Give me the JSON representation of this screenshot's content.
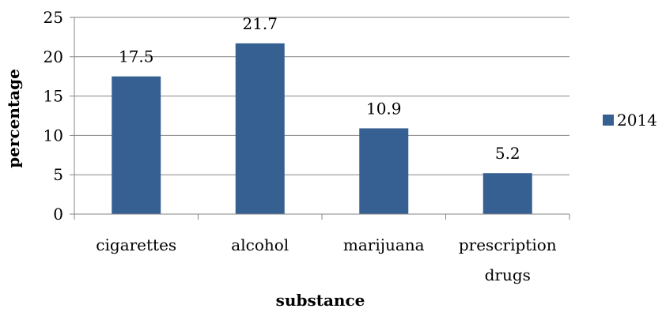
{
  "chart_data": {
    "type": "bar",
    "title": "",
    "xlabel": "substance",
    "ylabel": "percentage",
    "categories": [
      "cigarettes",
      "alcohol",
      "marijuana",
      "prescription drugs"
    ],
    "category_lines": [
      [
        "cigarettes"
      ],
      [
        "alcohol"
      ],
      [
        "marijuana"
      ],
      [
        "prescription",
        "drugs"
      ]
    ],
    "series": [
      {
        "name": "2014",
        "values": [
          17.5,
          21.7,
          10.9,
          5.2
        ],
        "color": "#376092"
      }
    ],
    "data_labels": [
      "17.5",
      "21.7",
      "10.9",
      "5.2"
    ],
    "ylim": [
      0,
      25
    ],
    "yticks": [
      0,
      5,
      10,
      15,
      20,
      25
    ],
    "grid": true,
    "legend": "right"
  }
}
